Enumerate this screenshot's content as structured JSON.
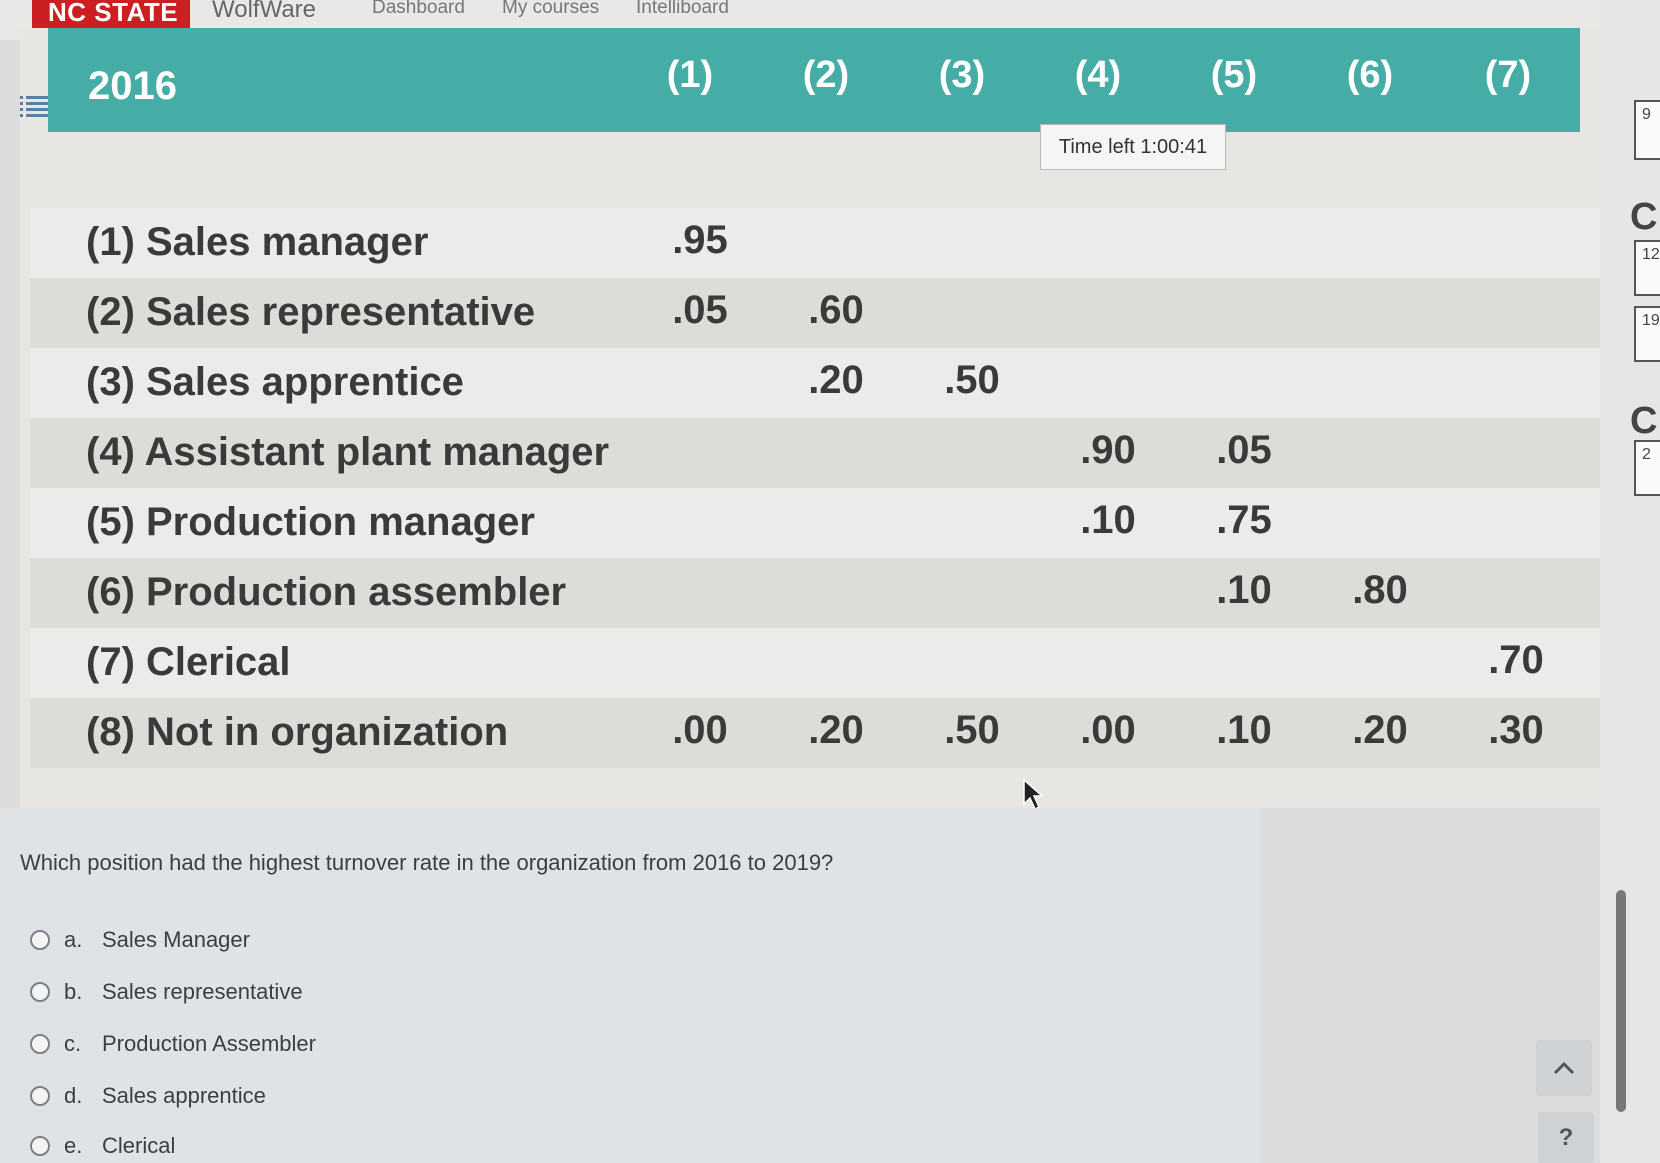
{
  "nav": {
    "brand": "NC STATE",
    "app": "WolfWare",
    "links": [
      "Dashboard",
      "My courses",
      "Intelliboard"
    ]
  },
  "table": {
    "year": "2016",
    "columns": [
      "(1)",
      "(2)",
      "(3)",
      "(4)",
      "(5)",
      "(6)",
      "(7)"
    ],
    "rows": [
      {
        "label": "(1) Sales manager",
        "cells": [
          ".95",
          "",
          "",
          "",
          "",
          "",
          ""
        ]
      },
      {
        "label": "(2) Sales representative",
        "cells": [
          ".05",
          ".60",
          "",
          "",
          "",
          "",
          ""
        ]
      },
      {
        "label": "(3) Sales apprentice",
        "cells": [
          "",
          ".20",
          ".50",
          "",
          "",
          "",
          ""
        ]
      },
      {
        "label": "(4) Assistant plant manager",
        "cells": [
          "",
          "",
          "",
          ".90",
          ".05",
          "",
          ""
        ]
      },
      {
        "label": "(5) Production manager",
        "cells": [
          "",
          "",
          "",
          ".10",
          ".75",
          "",
          ""
        ]
      },
      {
        "label": "(6) Production assembler",
        "cells": [
          "",
          "",
          "",
          "",
          ".10",
          ".80",
          ""
        ]
      },
      {
        "label": "(7) Clerical",
        "cells": [
          "",
          "",
          "",
          "",
          "",
          "",
          ".70"
        ]
      },
      {
        "label": "(8) Not in organization",
        "cells": [
          ".00",
          ".20",
          ".50",
          ".00",
          ".10",
          ".20",
          ".30"
        ]
      }
    ]
  },
  "timer": "Time left 1:00:41",
  "question": {
    "text": "Which position had the highest turnover rate in the organization from 2016 to 2019?",
    "options": [
      {
        "letter": "a.",
        "label": "Sales Manager"
      },
      {
        "letter": "b.",
        "label": "Sales representative"
      },
      {
        "letter": "c.",
        "label": "Production Assembler"
      },
      {
        "letter": "d.",
        "label": "Sales apprentice"
      },
      {
        "letter": "e.",
        "label": "Clerical"
      }
    ]
  },
  "sidebar": {
    "fragments": [
      "9",
      "C",
      "12",
      "19",
      "C",
      "2"
    ]
  },
  "help_label": "?"
}
